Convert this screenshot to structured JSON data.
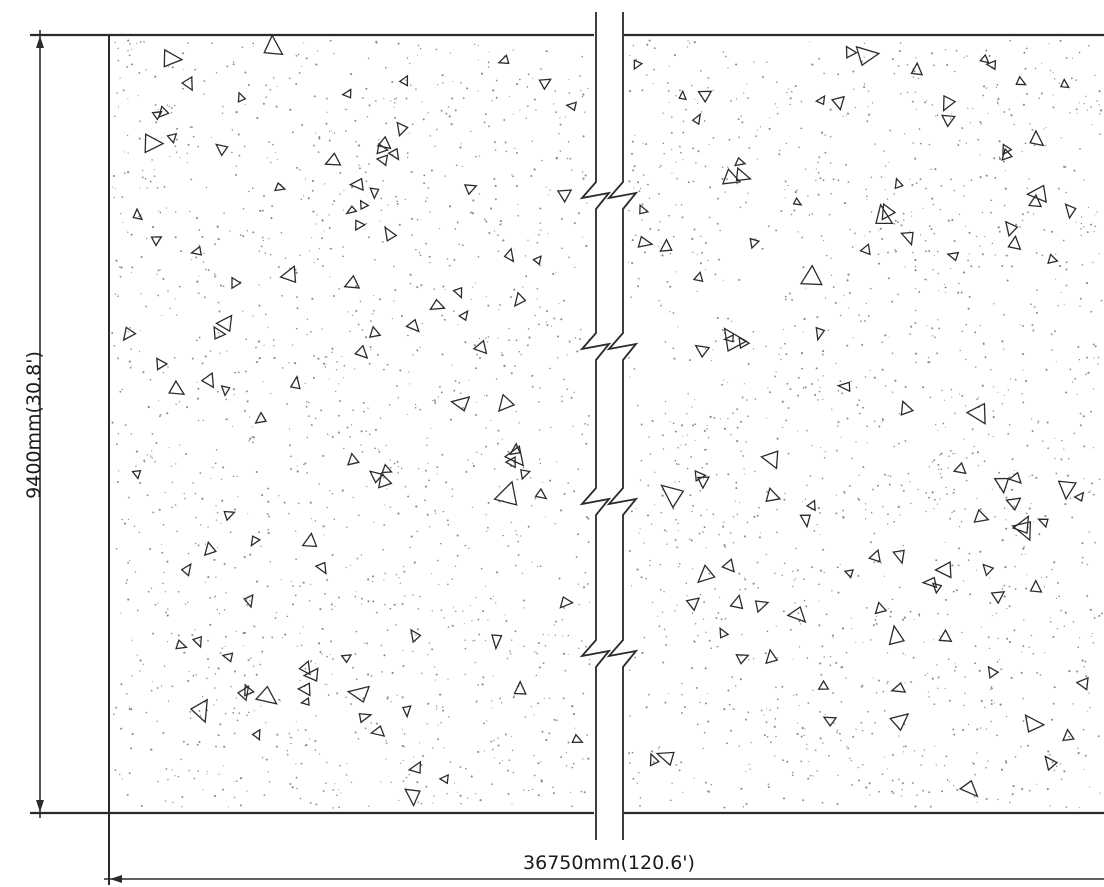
{
  "dimensions": {
    "height_label": "9400mm(30.8')",
    "width_label": "36750mm(120.6')"
  },
  "colors": {
    "line": "#2a2a2a",
    "speckle": "#8a8a8a",
    "background": "#ffffff"
  },
  "hatch_pattern": "concrete"
}
